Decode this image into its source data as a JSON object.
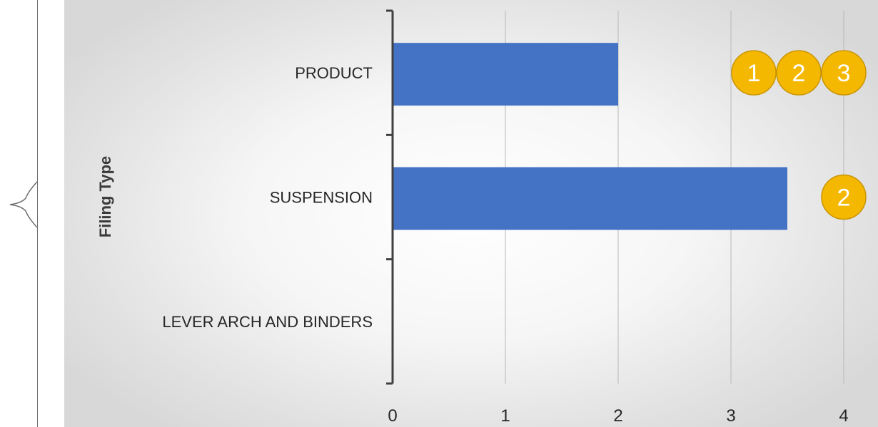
{
  "chart_data": {
    "type": "bar",
    "orientation": "horizontal",
    "categories": [
      "PRODUCT",
      "SUSPENSION",
      "LEVER ARCH AND BINDERS"
    ],
    "values": [
      2,
      3.5,
      0
    ],
    "ylabel": "Filing Type",
    "xlabel": "",
    "xlim": [
      0,
      4
    ],
    "x_ticks": [
      "0",
      "1",
      "2",
      "3",
      "4"
    ],
    "grid": true,
    "colors": {
      "bar": "#4472c4",
      "badge": "#f5b800",
      "badge_border": "#c99400"
    }
  },
  "badges": [
    {
      "category": "PRODUCT",
      "labels": [
        "1",
        "2",
        "3"
      ]
    },
    {
      "category": "SUSPENSION",
      "labels": [
        "2"
      ]
    }
  ]
}
